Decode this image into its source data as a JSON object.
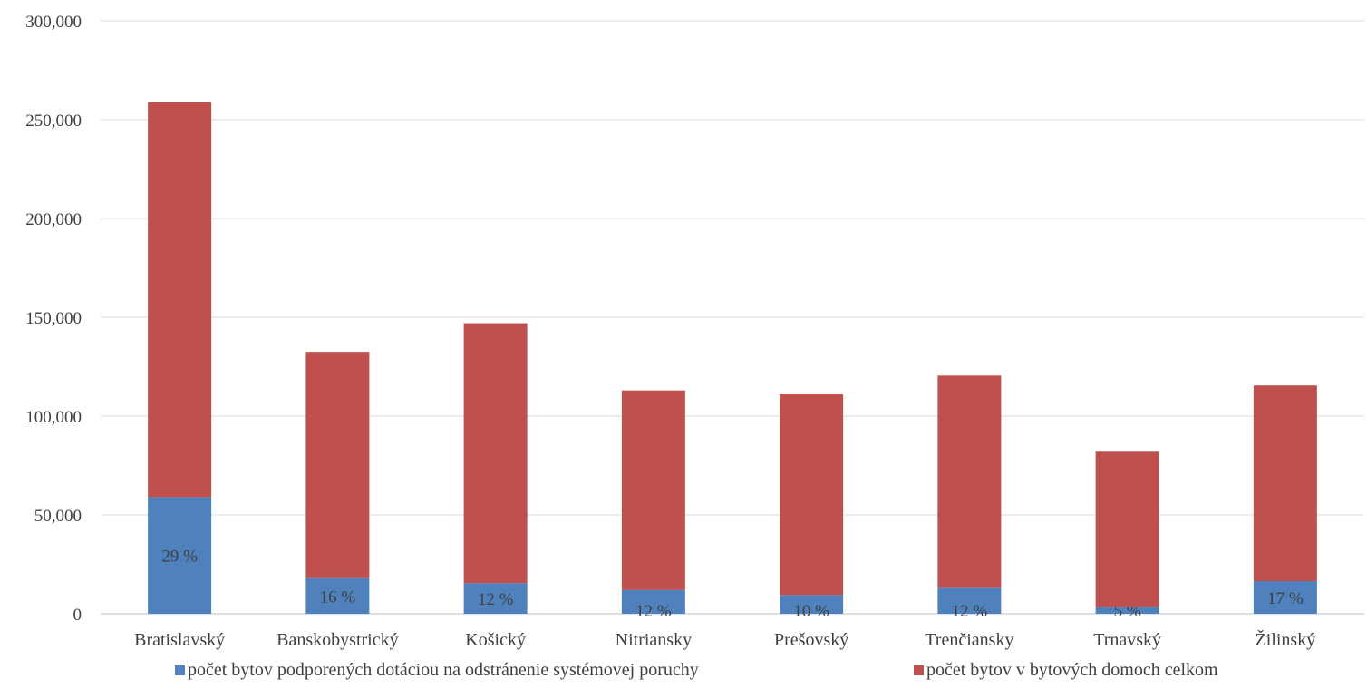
{
  "chart_data": {
    "type": "bar",
    "stacked": true,
    "categories": [
      "Bratislavský",
      "Banskobystrický",
      "Košický",
      "Nitriansky",
      "Prešovský",
      "Trenčiansky",
      "Trnavský",
      "Žilinský"
    ],
    "series": [
      {
        "name": "počet bytov podporených dotáciou na odstránenie systémovej poruchy",
        "color": "#4f81bd",
        "values": [
          59000,
          18000,
          15500,
          12000,
          9500,
          13000,
          3500,
          16500
        ],
        "data_labels": [
          "29 %",
          "16 %",
          "12 %",
          "12 %",
          "10 %",
          "12 %",
          "5 %",
          "17 %"
        ]
      },
      {
        "name": "počet bytov v bytových domoch celkom",
        "color": "#c0504d",
        "values": [
          200000,
          114500,
          131500,
          101000,
          101500,
          107500,
          78500,
          99000
        ]
      }
    ],
    "y_ticks": [
      "0",
      "50,000",
      "100,000",
      "150,000",
      "200,000",
      "250,000",
      "300,000"
    ],
    "ylim": [
      0,
      300000
    ],
    "grid": true,
    "legend_position": "bottom"
  }
}
